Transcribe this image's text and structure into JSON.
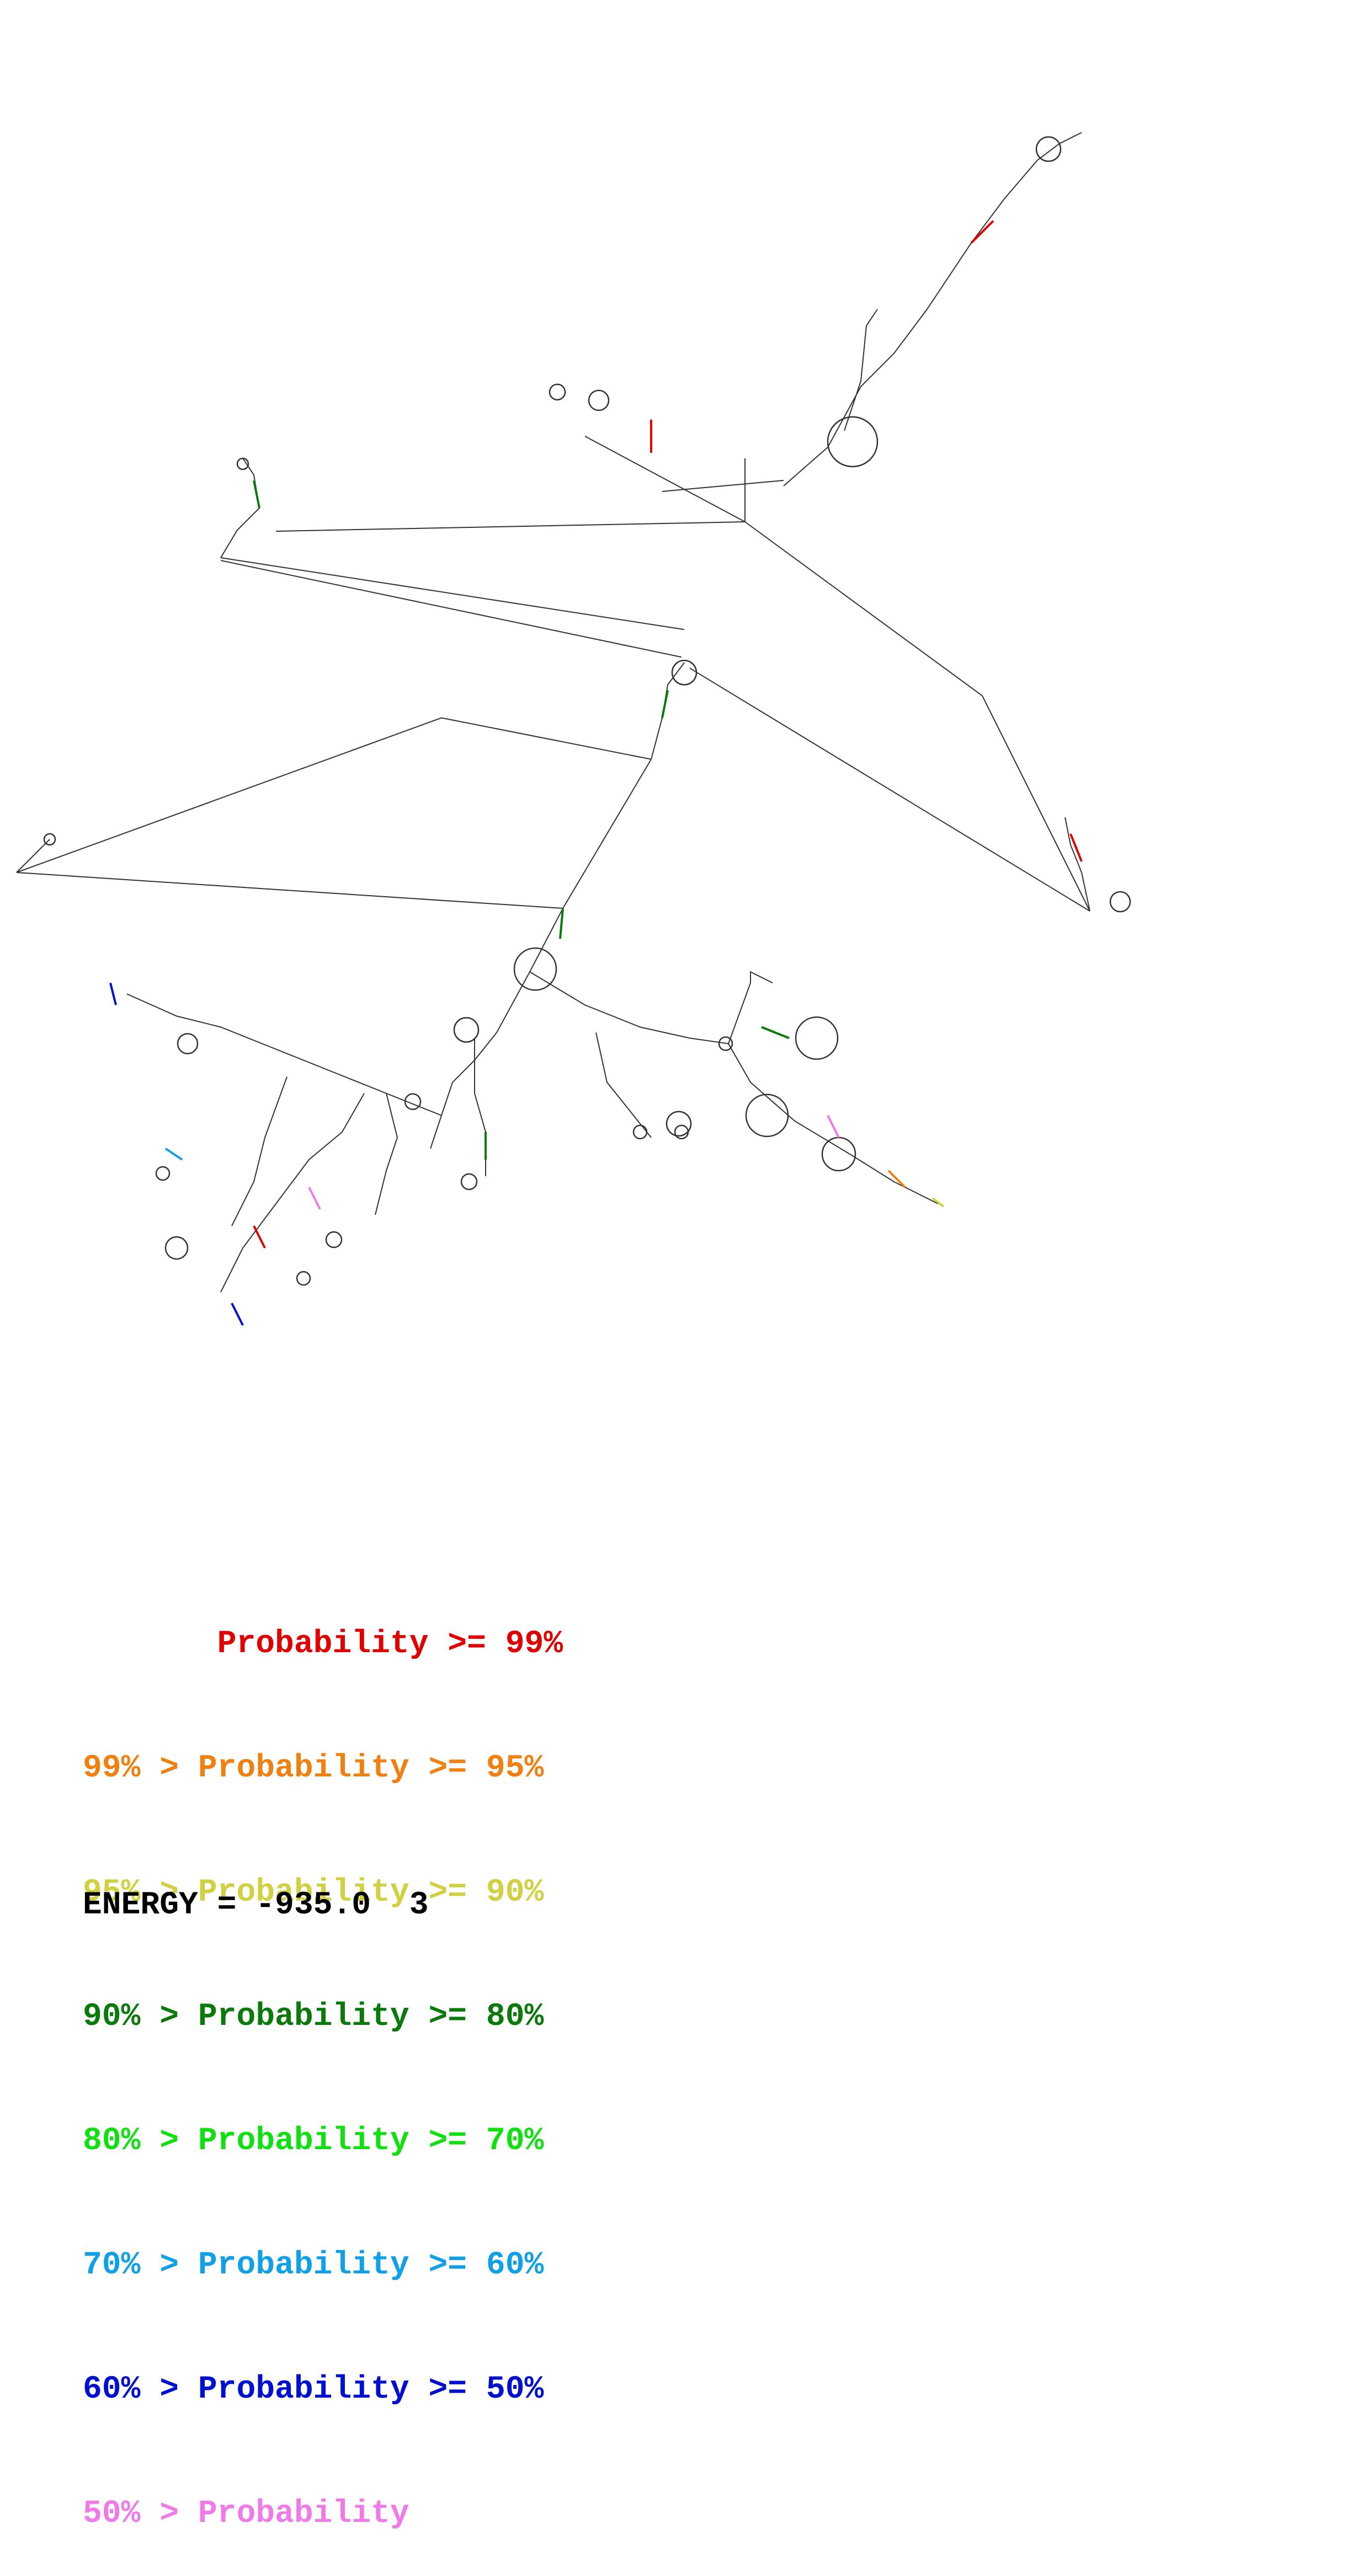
{
  "legend": {
    "rows": [
      {
        "text": "       Probability >= 99%",
        "color": "#e00000"
      },
      {
        "text": "99% > Probability >= 95%",
        "color": "#f08010"
      },
      {
        "text": "95% > Probability >= 90%",
        "color": "#d0d040"
      },
      {
        "text": "90% > Probability >= 80%",
        "color": "#0a7a0a"
      },
      {
        "text": "80% > Probability >= 70%",
        "color": "#10e010"
      },
      {
        "text": "70% > Probability >= 60%",
        "color": "#10a0e8"
      },
      {
        "text": "60% > Probability >= 50%",
        "color": "#0010d0"
      },
      {
        "text": "50% > Probability",
        "color": "#f07ae8"
      }
    ]
  },
  "energy": {
    "label": "ENERGY = -935.0  3"
  }
}
